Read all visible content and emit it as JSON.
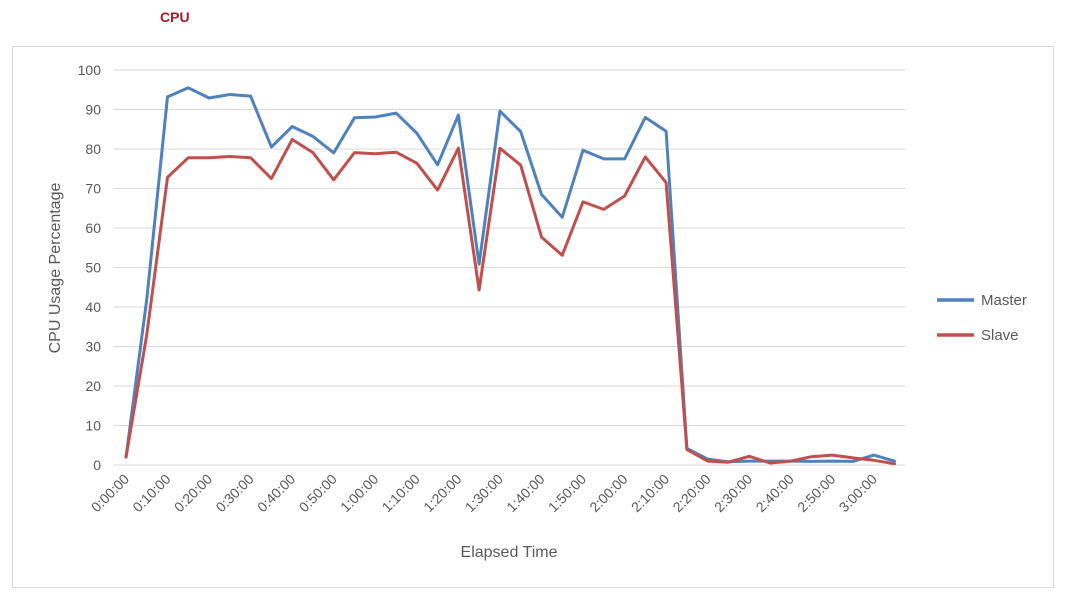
{
  "section_title": "CPU",
  "chart_data": {
    "type": "line",
    "title": "",
    "xlabel": "Elapsed Time",
    "ylabel": "CPU Usage Percentage",
    "ylim": [
      0,
      100
    ],
    "yticks": [
      0,
      10,
      20,
      30,
      40,
      50,
      60,
      70,
      80,
      90,
      100
    ],
    "grid": true,
    "legend_position": "right",
    "x_tick_labels": [
      "0:00:00",
      "0:10:00",
      "0:20:00",
      "0:30:00",
      "0:40:00",
      "0:50:00",
      "1:00:00",
      "1:10:00",
      "1:20:00",
      "1:30:00",
      "1:40:00",
      "1:50:00",
      "2:00:00",
      "2:10:00",
      "2:20:00",
      "2:30:00",
      "2:40:00",
      "2:50:00",
      "3:00:00"
    ],
    "x": [
      "0:00:00",
      "0:05:00",
      "0:10:00",
      "0:15:00",
      "0:20:00",
      "0:25:00",
      "0:30:00",
      "0:35:00",
      "0:40:00",
      "0:45:00",
      "0:50:00",
      "0:55:00",
      "1:00:00",
      "1:05:00",
      "1:10:00",
      "1:15:00",
      "1:20:00",
      "1:25:00",
      "1:30:00",
      "1:35:00",
      "1:40:00",
      "1:45:00",
      "1:50:00",
      "1:55:00",
      "2:00:00",
      "2:05:00",
      "2:10:00",
      "2:15:00",
      "2:20:00",
      "2:25:00",
      "2:30:00",
      "2:35:00",
      "2:40:00",
      "2:45:00",
      "2:50:00",
      "2:55:00",
      "3:00:00",
      "3:05:00"
    ],
    "series": [
      {
        "name": "Master",
        "color": "#4f81bd",
        "values": [
          2.0,
          42.0,
          93.2,
          95.5,
          92.9,
          93.8,
          93.4,
          80.5,
          85.7,
          83.2,
          79.0,
          87.9,
          88.1,
          89.1,
          84.0,
          76.0,
          88.6,
          50.8,
          89.6,
          84.4,
          68.5,
          62.7,
          79.7,
          77.5,
          77.5,
          88.0,
          84.5,
          4.2,
          1.5,
          0.8,
          1.0,
          1.0,
          1.0,
          0.9,
          1.0,
          0.9,
          2.5,
          1.0
        ]
      },
      {
        "name": "Slave",
        "color": "#c0504d",
        "values": [
          2.0,
          33.0,
          72.8,
          77.8,
          77.8,
          78.1,
          77.8,
          72.5,
          82.4,
          79.1,
          72.2,
          79.1,
          78.8,
          79.2,
          76.4,
          69.6,
          80.2,
          44.3,
          80.2,
          75.9,
          57.7,
          53.1,
          66.6,
          64.7,
          68.1,
          78.0,
          71.5,
          3.9,
          1.0,
          0.7,
          2.2,
          0.5,
          1.0,
          2.1,
          2.5,
          1.8,
          1.2,
          0.3
        ]
      }
    ]
  }
}
